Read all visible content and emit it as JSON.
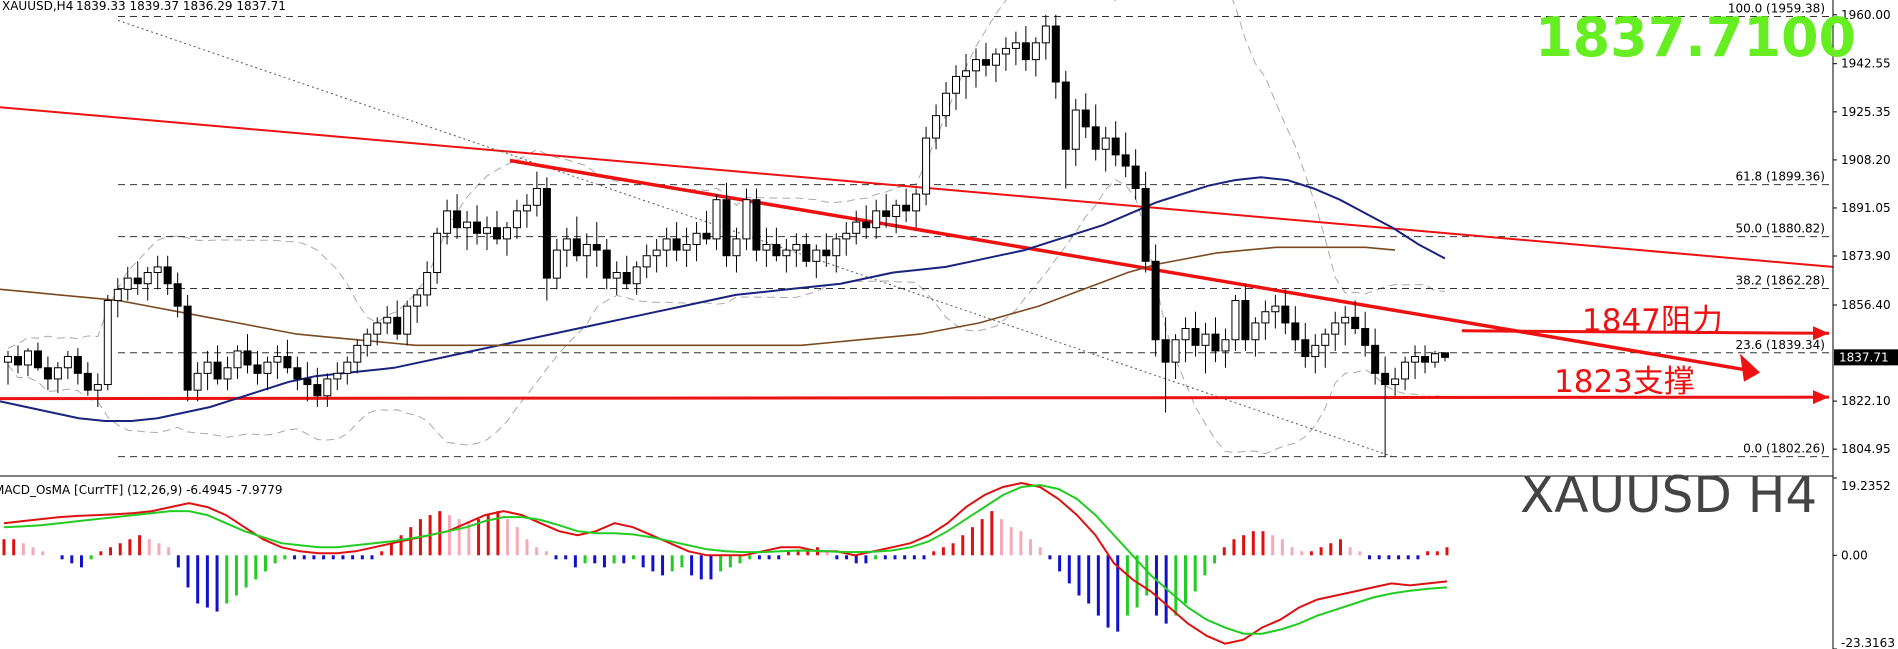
{
  "header": {
    "symbol_tf": "XAUUSD,H4",
    "ohlc": "1839.33 1839.37 1836.29 1837.71"
  },
  "big_price": {
    "text": "1837.7100",
    "color": "#66ee22"
  },
  "symbol_label": {
    "text": "XAUUSD  H4"
  },
  "current_price_tag": "1837.71",
  "colors": {
    "trend_red": "#ee1111",
    "ma_blue": "#1a237e",
    "ma_brown": "#7a4a20",
    "osma_red": "#dd1111",
    "osma_pink": "#f4aab8",
    "osma_green": "#22cc22",
    "osma_blue": "#1111cc",
    "macd_main": "#dd1111",
    "macd_signal": "#22cc22"
  },
  "chart_data": [
    {
      "type": "candlestick",
      "title": "XAUUSD,H4",
      "ylim": [
        1797.5,
        1963.5
      ],
      "price_ticks": [
        "1960.00",
        "1942.55",
        "1925.35",
        "1908.20",
        "1891.05",
        "1873.90",
        "1856.40",
        "1822.10",
        "1804.95"
      ],
      "fib_levels": [
        {
          "label": "100.0 (1959.38)",
          "price": 1959.38
        },
        {
          "label": "61.8 (1899.36)",
          "price": 1899.36
        },
        {
          "label": "50.0 (1880.82)",
          "price": 1880.82
        },
        {
          "label": "38.2 (1862.28)",
          "price": 1862.28
        },
        {
          "label": "23.6 (1839.34)",
          "price": 1839.34
        },
        {
          "label": "0.0 (1802.26)",
          "price": 1802.26
        }
      ],
      "annotations": [
        {
          "text": "1847阻力",
          "color": "#ee1111"
        },
        {
          "text": "1823支撑",
          "color": "#ee1111"
        }
      ],
      "resistance_level": 1847,
      "support_level": 1823,
      "candles": [
        [
          1836,
          1840,
          1828,
          1838
        ],
        [
          1838,
          1842,
          1832,
          1835
        ],
        [
          1835,
          1841,
          1831,
          1840
        ],
        [
          1840,
          1843,
          1833,
          1834
        ],
        [
          1834,
          1838,
          1826,
          1830
        ],
        [
          1830,
          1836,
          1825,
          1834
        ],
        [
          1834,
          1840,
          1830,
          1838
        ],
        [
          1838,
          1841,
          1828,
          1832
        ],
        [
          1832,
          1836,
          1824,
          1826
        ],
        [
          1826,
          1832,
          1820,
          1828
        ],
        [
          1828,
          1860,
          1826,
          1858
        ],
        [
          1858,
          1866,
          1852,
          1862
        ],
        [
          1862,
          1870,
          1858,
          1866
        ],
        [
          1866,
          1872,
          1860,
          1864
        ],
        [
          1864,
          1870,
          1858,
          1868
        ],
        [
          1868,
          1874,
          1862,
          1870
        ],
        [
          1870,
          1874,
          1860,
          1864
        ],
        [
          1864,
          1868,
          1852,
          1856
        ],
        [
          1856,
          1860,
          1822,
          1826
        ],
        [
          1826,
          1836,
          1822,
          1832
        ],
        [
          1832,
          1840,
          1826,
          1836
        ],
        [
          1836,
          1842,
          1828,
          1830
        ],
        [
          1830,
          1838,
          1826,
          1834
        ],
        [
          1834,
          1842,
          1830,
          1840
        ],
        [
          1840,
          1846,
          1832,
          1835
        ],
        [
          1835,
          1840,
          1828,
          1832
        ],
        [
          1832,
          1838,
          1826,
          1836
        ],
        [
          1836,
          1842,
          1830,
          1838
        ],
        [
          1838,
          1844,
          1832,
          1834
        ],
        [
          1834,
          1838,
          1826,
          1830
        ],
        [
          1830,
          1836,
          1822,
          1828
        ],
        [
          1828,
          1834,
          1820,
          1824
        ],
        [
          1824,
          1832,
          1820,
          1830
        ],
        [
          1830,
          1836,
          1826,
          1832
        ],
        [
          1832,
          1838,
          1828,
          1836
        ],
        [
          1836,
          1844,
          1832,
          1842
        ],
        [
          1842,
          1848,
          1838,
          1846
        ],
        [
          1846,
          1852,
          1842,
          1850
        ],
        [
          1850,
          1856,
          1846,
          1852
        ],
        [
          1852,
          1858,
          1844,
          1846
        ],
        [
          1846,
          1858,
          1842,
          1856
        ],
        [
          1856,
          1862,
          1850,
          1860
        ],
        [
          1860,
          1872,
          1856,
          1868
        ],
        [
          1868,
          1884,
          1864,
          1882
        ],
        [
          1882,
          1894,
          1878,
          1890
        ],
        [
          1890,
          1896,
          1880,
          1884
        ],
        [
          1884,
          1890,
          1876,
          1886
        ],
        [
          1886,
          1892,
          1878,
          1882
        ],
        [
          1882,
          1888,
          1876,
          1884
        ],
        [
          1884,
          1890,
          1878,
          1880
        ],
        [
          1880,
          1886,
          1874,
          1884
        ],
        [
          1884,
          1894,
          1880,
          1890
        ],
        [
          1890,
          1896,
          1884,
          1892
        ],
        [
          1892,
          1904,
          1888,
          1898
        ],
        [
          1898,
          1902,
          1858,
          1866
        ],
        [
          1866,
          1880,
          1862,
          1876
        ],
        [
          1876,
          1884,
          1870,
          1880
        ],
        [
          1880,
          1888,
          1872,
          1874
        ],
        [
          1874,
          1882,
          1866,
          1878
        ],
        [
          1878,
          1886,
          1870,
          1876
        ],
        [
          1876,
          1880,
          1862,
          1866
        ],
        [
          1866,
          1872,
          1860,
          1868
        ],
        [
          1868,
          1874,
          1862,
          1864
        ],
        [
          1864,
          1872,
          1860,
          1870
        ],
        [
          1870,
          1878,
          1866,
          1874
        ],
        [
          1874,
          1880,
          1868,
          1876
        ],
        [
          1876,
          1884,
          1870,
          1880
        ],
        [
          1880,
          1886,
          1872,
          1876
        ],
        [
          1876,
          1884,
          1870,
          1878
        ],
        [
          1878,
          1886,
          1872,
          1882
        ],
        [
          1882,
          1890,
          1878,
          1880
        ],
        [
          1880,
          1896,
          1876,
          1894
        ],
        [
          1894,
          1900,
          1870,
          1874
        ],
        [
          1874,
          1884,
          1868,
          1880
        ],
        [
          1880,
          1898,
          1876,
          1894
        ],
        [
          1894,
          1898,
          1872,
          1876
        ],
        [
          1876,
          1884,
          1870,
          1878
        ],
        [
          1878,
          1884,
          1872,
          1874
        ],
        [
          1874,
          1880,
          1868,
          1876
        ],
        [
          1876,
          1882,
          1870,
          1878
        ],
        [
          1878,
          1882,
          1870,
          1872
        ],
        [
          1872,
          1878,
          1866,
          1876
        ],
        [
          1876,
          1882,
          1870,
          1874
        ],
        [
          1874,
          1882,
          1868,
          1880
        ],
        [
          1880,
          1886,
          1874,
          1882
        ],
        [
          1882,
          1890,
          1878,
          1886
        ],
        [
          1886,
          1892,
          1880,
          1884
        ],
        [
          1884,
          1894,
          1880,
          1890
        ],
        [
          1890,
          1896,
          1884,
          1888
        ],
        [
          1888,
          1894,
          1882,
          1892
        ],
        [
          1892,
          1898,
          1886,
          1890
        ],
        [
          1890,
          1898,
          1884,
          1896
        ],
        [
          1896,
          1920,
          1892,
          1916
        ],
        [
          1916,
          1928,
          1912,
          1924
        ],
        [
          1924,
          1936,
          1920,
          1932
        ],
        [
          1932,
          1942,
          1926,
          1938
        ],
        [
          1938,
          1946,
          1930,
          1940
        ],
        [
          1940,
          1948,
          1934,
          1944
        ],
        [
          1944,
          1950,
          1938,
          1942
        ],
        [
          1942,
          1948,
          1936,
          1946
        ],
        [
          1946,
          1952,
          1940,
          1948
        ],
        [
          1948,
          1954,
          1942,
          1950
        ],
        [
          1950,
          1956,
          1940,
          1944
        ],
        [
          1944,
          1952,
          1938,
          1950
        ],
        [
          1950,
          1960,
          1944,
          1956
        ],
        [
          1956,
          1960,
          1930,
          1936
        ],
        [
          1936,
          1940,
          1898,
          1912
        ],
        [
          1912,
          1930,
          1906,
          1926
        ],
        [
          1926,
          1932,
          1916,
          1920
        ],
        [
          1920,
          1928,
          1908,
          1912
        ],
        [
          1912,
          1920,
          1904,
          1916
        ],
        [
          1916,
          1922,
          1906,
          1910
        ],
        [
          1910,
          1918,
          1902,
          1906
        ],
        [
          1906,
          1912,
          1894,
          1898
        ],
        [
          1898,
          1904,
          1868,
          1872
        ],
        [
          1872,
          1878,
          1838,
          1844
        ],
        [
          1844,
          1852,
          1818,
          1836
        ],
        [
          1836,
          1846,
          1830,
          1844
        ],
        [
          1844,
          1852,
          1836,
          1848
        ],
        [
          1848,
          1854,
          1838,
          1842
        ],
        [
          1842,
          1850,
          1832,
          1846
        ],
        [
          1846,
          1852,
          1836,
          1840
        ],
        [
          1840,
          1848,
          1834,
          1844
        ],
        [
          1844,
          1860,
          1840,
          1858
        ],
        [
          1858,
          1864,
          1840,
          1844
        ],
        [
          1844,
          1852,
          1838,
          1850
        ],
        [
          1850,
          1858,
          1844,
          1854
        ],
        [
          1854,
          1860,
          1848,
          1856
        ],
        [
          1856,
          1862,
          1846,
          1850
        ],
        [
          1850,
          1856,
          1840,
          1844
        ],
        [
          1844,
          1850,
          1834,
          1838
        ],
        [
          1838,
          1846,
          1832,
          1842
        ],
        [
          1842,
          1848,
          1834,
          1846
        ],
        [
          1846,
          1854,
          1840,
          1850
        ],
        [
          1850,
          1856,
          1842,
          1852
        ],
        [
          1852,
          1858,
          1846,
          1848
        ],
        [
          1848,
          1854,
          1838,
          1842
        ],
        [
          1842,
          1848,
          1828,
          1832
        ],
        [
          1832,
          1838,
          1802,
          1828
        ],
        [
          1828,
          1834,
          1824,
          1830
        ],
        [
          1830,
          1838,
          1826,
          1836
        ],
        [
          1836,
          1842,
          1830,
          1838
        ],
        [
          1838,
          1842,
          1832,
          1836
        ],
        [
          1836,
          1840,
          1834,
          1839
        ],
        [
          1839.33,
          1839.37,
          1836.29,
          1837.71
        ]
      ],
      "moving_averages": [
        {
          "color": "#1a237e",
          "values": [
            1822,
            1820,
            1818,
            1816,
            1815,
            1815,
            1816,
            1818,
            1820,
            1823,
            1826,
            1829,
            1831,
            1832,
            1833,
            1834,
            1836,
            1838,
            1840,
            1842,
            1844,
            1846,
            1848,
            1850,
            1852,
            1854,
            1856,
            1858,
            1860,
            1861,
            1862,
            1863,
            1864,
            1866,
            1868,
            1869,
            1870,
            1872,
            1874,
            1876,
            1879,
            1882,
            1885,
            1889,
            1893,
            1896,
            1899,
            1901,
            1902,
            1901,
            1898,
            1894,
            1889,
            1884,
            1878,
            1873
          ]
        },
        {
          "color": "#7a4a20",
          "values": [
            1862,
            1861,
            1860,
            1859,
            1858,
            1856,
            1854,
            1852,
            1850,
            1848,
            1846,
            1845,
            1844,
            1843,
            1842,
            1842,
            1842,
            1842,
            1842,
            1842,
            1842,
            1842,
            1842,
            1842,
            1842,
            1842,
            1842,
            1842,
            1843,
            1844,
            1845,
            1846,
            1848,
            1850,
            1853,
            1856,
            1860,
            1864,
            1868,
            1871,
            1873,
            1875,
            1876,
            1877,
            1877,
            1877,
            1877,
            1876
          ]
        }
      ]
    },
    {
      "type": "bar",
      "title": "MACD_OsMA [CurrTF] (12,26,9) -6.4945 -7.9779",
      "ylim": [
        -23.3163,
        19.2352
      ],
      "y_ticks": [
        "19.2352",
        "0.00",
        "-23.3163"
      ],
      "histogram": [
        4,
        4,
        3,
        2,
        1,
        0,
        -1,
        -2,
        -3,
        -1,
        1,
        2,
        3,
        4,
        5,
        4,
        3,
        2,
        -3,
        -8,
        -12,
        -13,
        -14,
        -12,
        -10,
        -8,
        -6,
        -4,
        -2,
        -1,
        -1,
        -1,
        -1,
        -1,
        -1,
        -1,
        -1,
        -1,
        -1,
        1,
        3,
        5,
        7,
        9,
        10,
        11,
        10,
        9,
        8,
        9,
        10,
        11,
        9,
        7,
        4,
        2,
        1,
        -1,
        -1,
        -3,
        -2,
        -2,
        -3,
        -2,
        -2,
        -1,
        -3,
        -4,
        -5,
        -4,
        -3,
        -5,
        -6,
        -6,
        -4,
        -3,
        -2,
        -1,
        -1,
        -1,
        -1,
        1,
        1,
        1,
        2,
        1,
        -1,
        -1,
        -2,
        -2,
        -1,
        -1,
        -1,
        -1,
        -1,
        -1,
        1,
        2,
        3,
        5,
        7,
        9,
        11,
        9,
        7,
        6,
        4,
        2,
        -1,
        -4,
        -7,
        -10,
        -12,
        -15,
        -18,
        -19,
        -15,
        -13,
        -10,
        -15,
        -17,
        -15,
        -12,
        -9,
        -5,
        -2,
        2,
        4,
        5,
        6,
        6,
        5,
        4,
        2,
        1,
        1,
        2,
        3,
        4,
        2,
        1,
        -1,
        -1,
        -1,
        -1,
        -1,
        -1,
        1,
        1,
        2
      ],
      "macd_line": [
        8,
        8.5,
        9,
        9.5,
        9.8,
        10,
        10.2,
        10.5,
        11,
        12,
        13,
        12,
        10,
        7,
        4,
        2,
        1,
        0.5,
        0.5,
        1,
        2,
        3,
        4,
        5,
        6,
        8,
        10,
        11,
        10,
        8,
        6,
        5,
        6,
        8,
        7,
        5,
        3,
        1,
        0,
        0,
        0,
        1,
        2,
        2,
        1,
        1,
        0,
        1,
        2,
        3,
        5,
        8,
        12,
        15,
        17,
        18,
        17,
        14,
        10,
        5,
        -2,
        -6,
        -9,
        -13,
        -17,
        -20,
        -22,
        -21,
        -18,
        -16,
        -13,
        -11,
        -10,
        -9,
        -8,
        -7,
        -7.5,
        -7,
        -6.5
      ],
      "signal_line": [
        7,
        7.2,
        7.5,
        8,
        8.5,
        9,
        9.5,
        10,
        10.5,
        11,
        11,
        10,
        8,
        6,
        4.5,
        3,
        2.5,
        2,
        2,
        2.5,
        3,
        3.5,
        4.2,
        5,
        6,
        7,
        8.5,
        9.5,
        9.5,
        8.8,
        7.5,
        6,
        5.5,
        5.5,
        5.2,
        4.5,
        3.5,
        2.5,
        1.5,
        1,
        0.8,
        0.8,
        1,
        1.2,
        1.1,
        0.9,
        0.8,
        0.9,
        1.2,
        2,
        3.5,
        6,
        9,
        12,
        15,
        17,
        17.5,
        16.5,
        14,
        10,
        5,
        0,
        -5,
        -9,
        -13,
        -16,
        -18,
        -19.5,
        -19.5,
        -18.5,
        -17,
        -15,
        -13.5,
        -12,
        -10.5,
        -9.5,
        -8.8,
        -8.3,
        -8
      ]
    }
  ]
}
